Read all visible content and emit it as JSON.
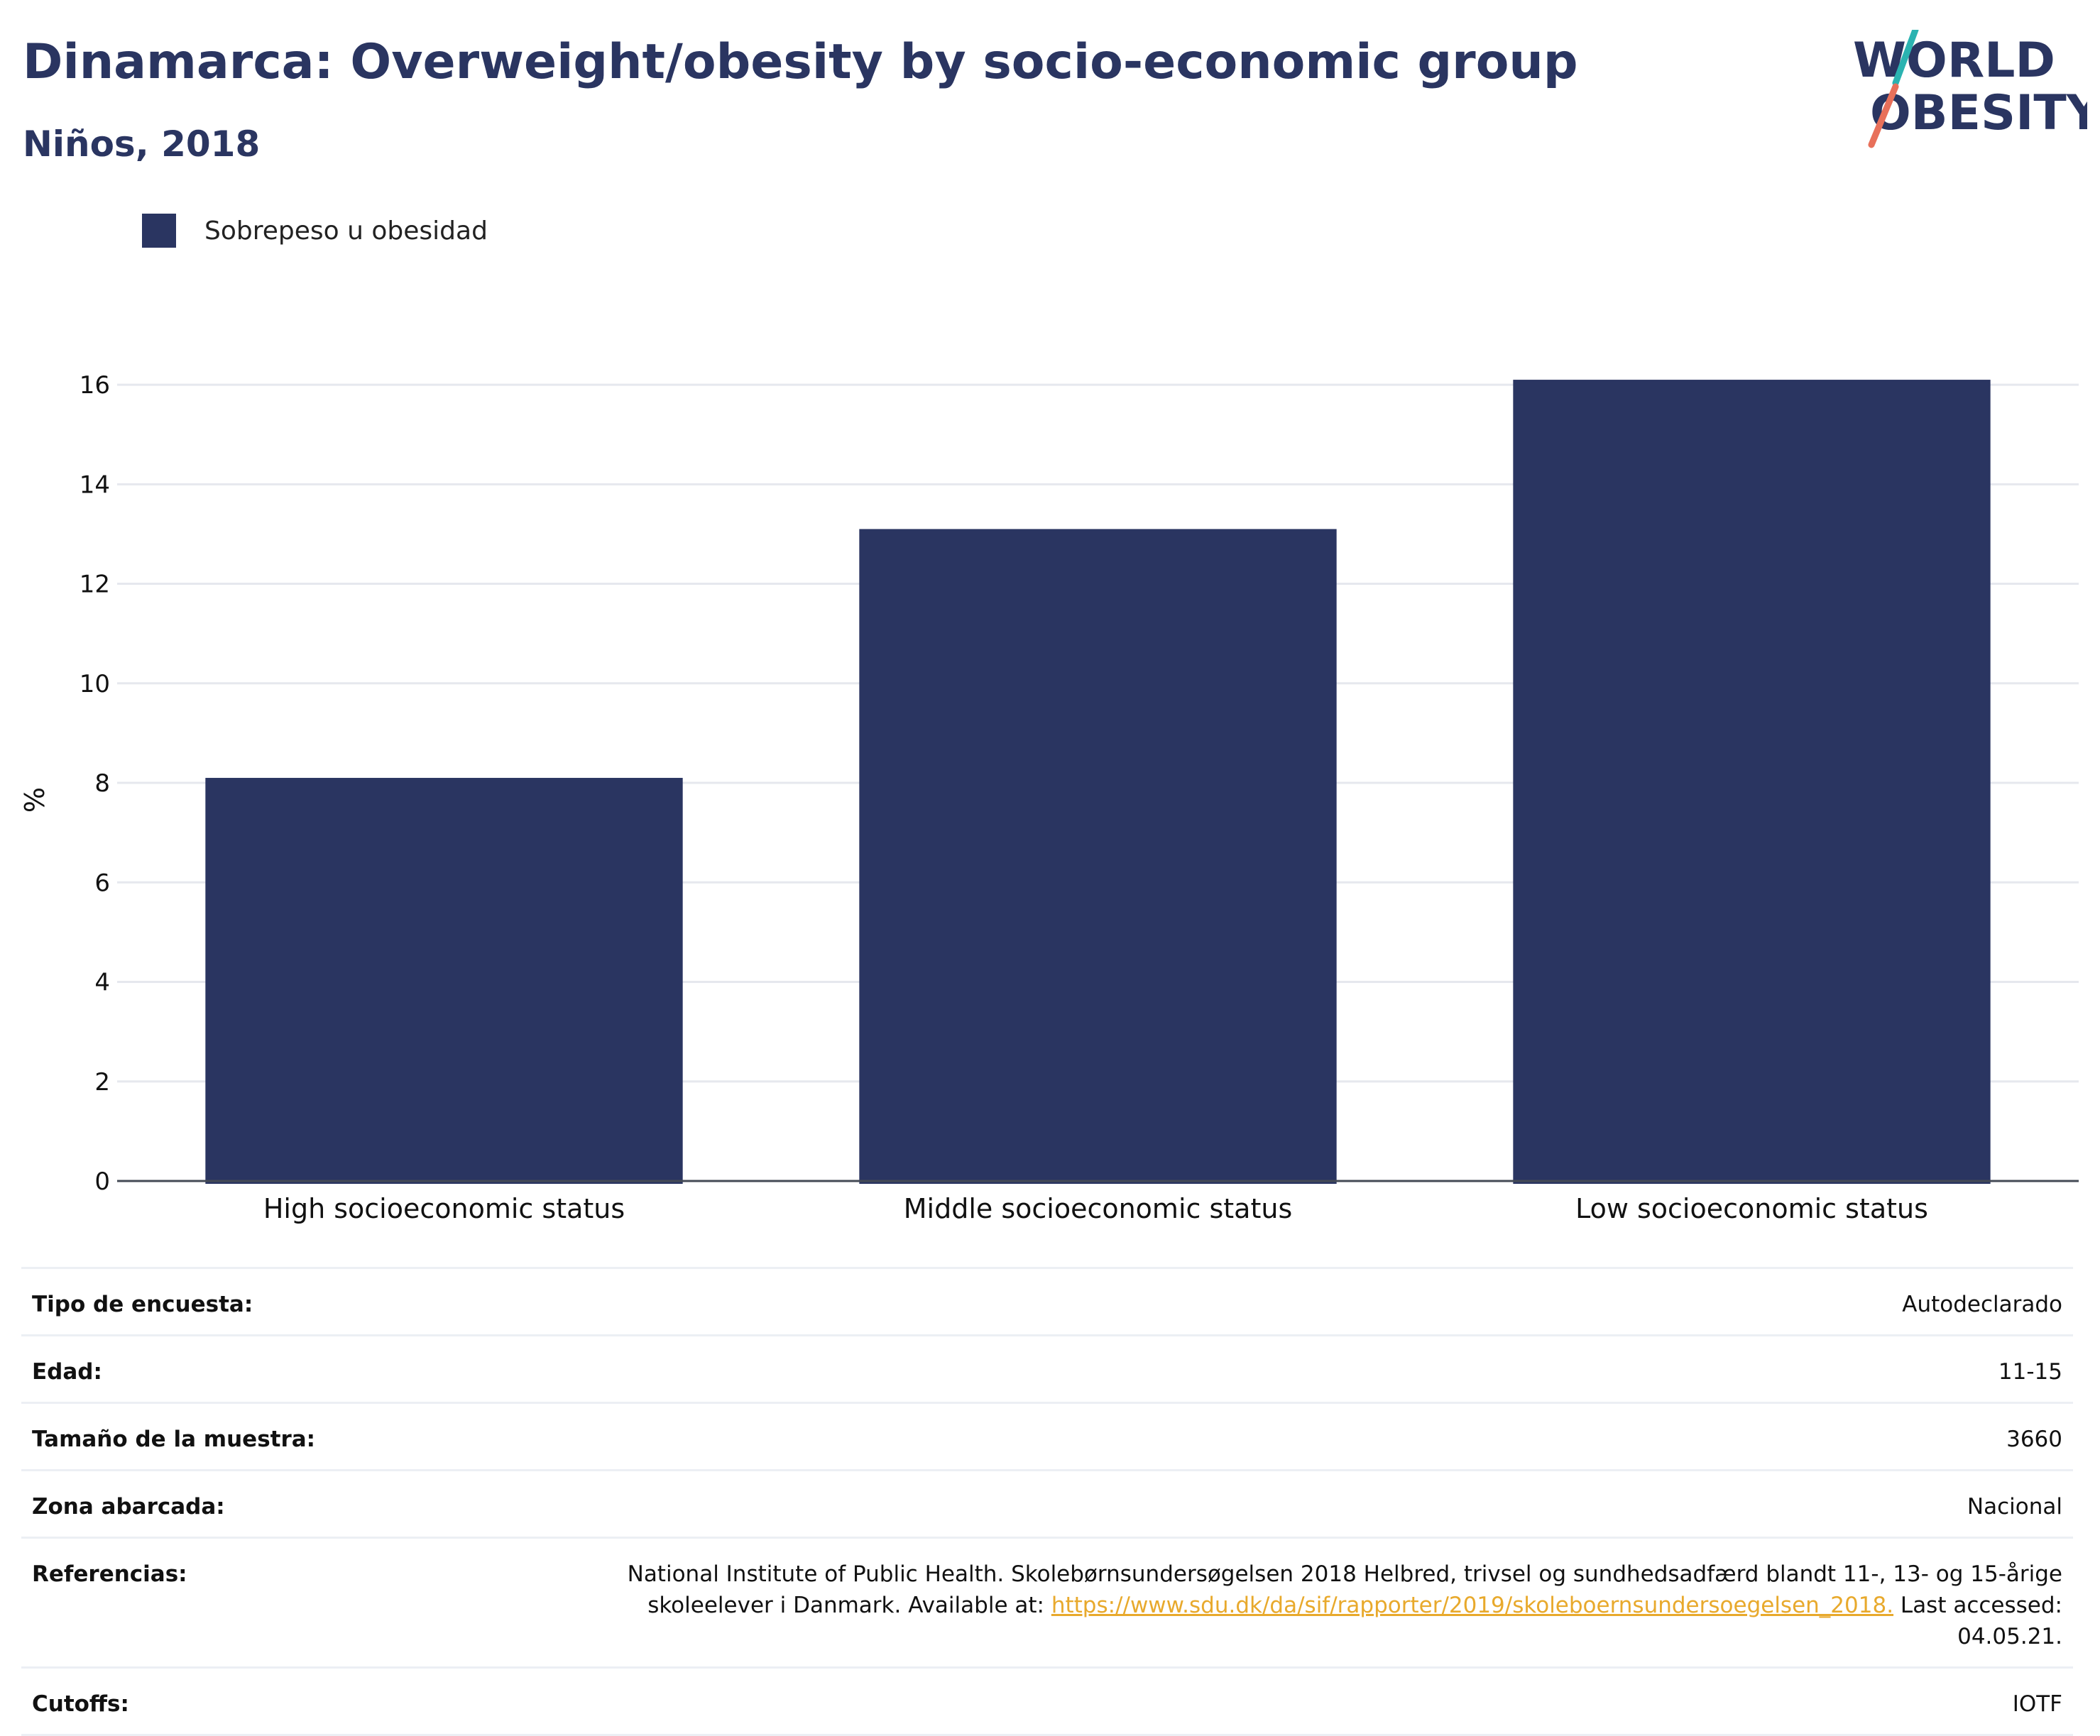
{
  "header": {
    "title": "Dinamarca: Overweight/obesity by socio-economic group",
    "subtitle": "Niños, 2018"
  },
  "logo": {
    "line1": "WORLD",
    "line2": "OBESITY",
    "colors": {
      "text": "#2a3561",
      "slash_teal": "#2bb3b1",
      "slash_coral": "#e8705a"
    }
  },
  "legend": {
    "label": "Sobrepeso u obesidad",
    "color": "#2a3561"
  },
  "chart_data": {
    "type": "bar",
    "categories": [
      "High socioeconomic status",
      "Middle socioeconomic status",
      "Low socioeconomic status"
    ],
    "series": [
      {
        "name": "Sobrepeso u obesidad",
        "values": [
          8.1,
          13.1,
          16.1
        ]
      }
    ],
    "ylabel": "%",
    "xlabel": "",
    "ylim": [
      0,
      16.6
    ],
    "yticks": [
      0,
      2,
      4,
      6,
      8,
      10,
      12,
      14,
      16
    ],
    "grid": true,
    "bar_color": "#2a3561"
  },
  "info": {
    "rows": [
      {
        "key": "Tipo de encuesta:",
        "value": "Autodeclarado"
      },
      {
        "key": "Edad:",
        "value": "11-15"
      },
      {
        "key": "Tamaño de la muestra:",
        "value": "3660"
      },
      {
        "key": "Zona abarcada:",
        "value": "Nacional"
      }
    ],
    "references": {
      "key": "Referencias:",
      "text_before": "National Institute of Public Health. Skolebørnsundersøgelsen 2018 Helbred, trivsel og sundhedsadfærd blandt 11-, 13- og 15-årige skoleelever i Danmark. Available at: ",
      "link": "https://www.sdu.dk/da/sif/rapporter/2019/skoleboernsundersoegelsen_2018.",
      "text_after": " Last accessed: 04.05.21."
    },
    "cutoffs": {
      "key": "Cutoffs:",
      "value": "IOTF"
    }
  }
}
